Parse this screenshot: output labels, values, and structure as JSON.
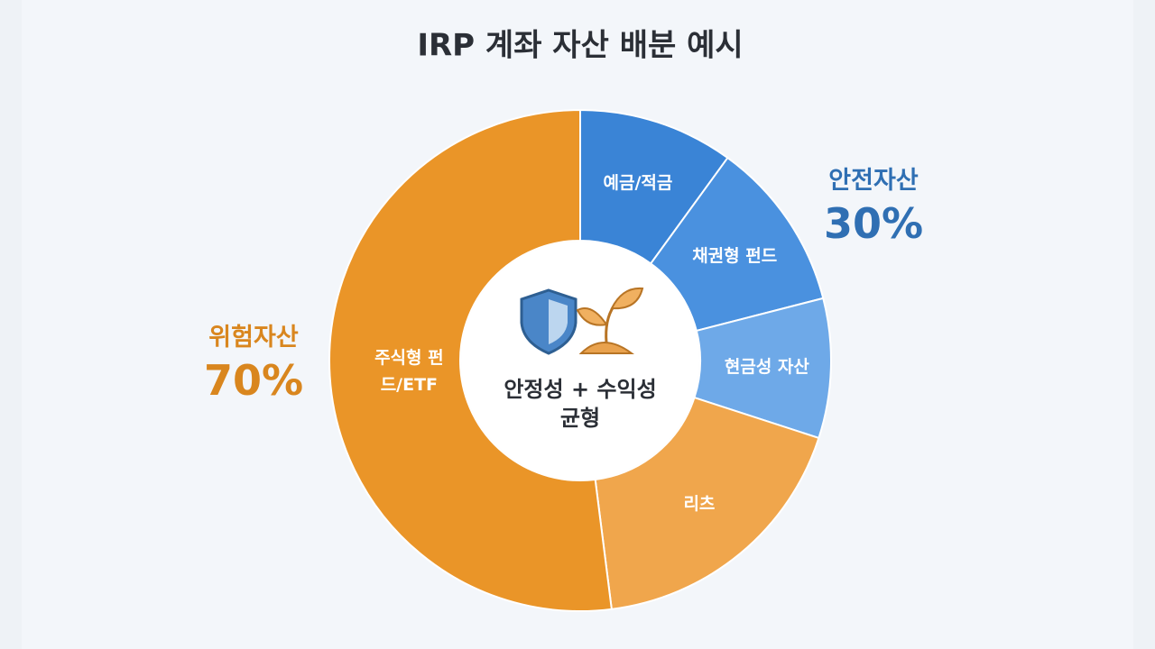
{
  "chart_data": {
    "type": "donut",
    "title": "IRP 계좌 자산 배분 예시",
    "categories": [
      "예금/적금",
      "채권형 펀드",
      "현금성 자산",
      "리츠",
      "주식형 펀드/ETF"
    ],
    "values": [
      10,
      11,
      9,
      18,
      52
    ],
    "colors": [
      "#3a84d6",
      "#4a91df",
      "#6ea9e8",
      "#f0a64c",
      "#ea9528"
    ],
    "groups": [
      {
        "name": "안전자산",
        "value": 30,
        "value_label": "30%",
        "color": "#2f6fb3"
      },
      {
        "name": "위험자산",
        "value": 70,
        "value_label": "70%",
        "color": "#d9861e"
      }
    ],
    "center_label": [
      "안정성 + 수익성",
      "균형"
    ]
  }
}
